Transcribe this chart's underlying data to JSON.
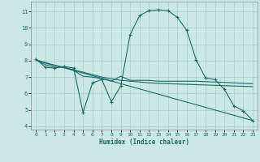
{
  "xlabel": "Humidex (Indice chaleur)",
  "background_color": "#cce8e5",
  "grid_color": "#aacfcc",
  "line_color": "#1a6b6a",
  "xlim": [
    -0.5,
    23.5
  ],
  "ylim": [
    3.8,
    11.6
  ],
  "xticks": [
    0,
    1,
    2,
    3,
    4,
    5,
    6,
    7,
    8,
    9,
    10,
    11,
    12,
    13,
    14,
    15,
    16,
    17,
    18,
    19,
    20,
    21,
    22,
    23
  ],
  "yticks": [
    4,
    5,
    6,
    7,
    8,
    9,
    10,
    11
  ],
  "series": [
    {
      "x": [
        0,
        1,
        2,
        3,
        4,
        5,
        6,
        7,
        8,
        9,
        10,
        11,
        12,
        13,
        14,
        15,
        16,
        17,
        18,
        19,
        20,
        21,
        22,
        23
      ],
      "y": [
        8.1,
        7.6,
        7.55,
        7.65,
        7.55,
        4.85,
        6.65,
        6.85,
        5.5,
        6.45,
        9.6,
        10.75,
        11.05,
        11.1,
        11.05,
        10.65,
        9.85,
        8.05,
        6.95,
        6.85,
        6.25,
        5.25,
        4.95,
        4.35
      ],
      "marker": true
    },
    {
      "x": [
        0,
        1,
        2,
        3,
        4,
        5,
        6,
        7,
        8,
        9,
        10,
        11,
        12,
        13,
        14,
        15,
        16,
        17,
        18,
        19,
        20,
        21,
        22,
        23
      ],
      "y": [
        8.05,
        7.85,
        7.7,
        7.6,
        7.45,
        7.3,
        7.15,
        7.0,
        6.9,
        6.8,
        6.75,
        6.7,
        6.65,
        6.62,
        6.6,
        6.58,
        6.56,
        6.54,
        6.52,
        6.5,
        6.48,
        6.46,
        6.44,
        6.42
      ],
      "marker": false
    },
    {
      "x": [
        0,
        23
      ],
      "y": [
        8.05,
        4.35
      ],
      "marker": false
    },
    {
      "x": [
        0,
        1,
        2,
        3,
        4,
        5,
        6,
        7,
        8,
        9,
        10,
        11,
        12,
        13,
        14,
        15,
        16,
        17,
        18,
        19,
        20,
        21,
        22,
        23
      ],
      "y": [
        8.05,
        7.75,
        7.6,
        7.6,
        7.4,
        7.05,
        7.0,
        6.9,
        6.75,
        7.05,
        6.8,
        6.8,
        6.8,
        6.75,
        6.75,
        6.75,
        6.75,
        6.75,
        6.72,
        6.7,
        6.68,
        6.65,
        6.62,
        6.6
      ],
      "marker": false
    }
  ]
}
